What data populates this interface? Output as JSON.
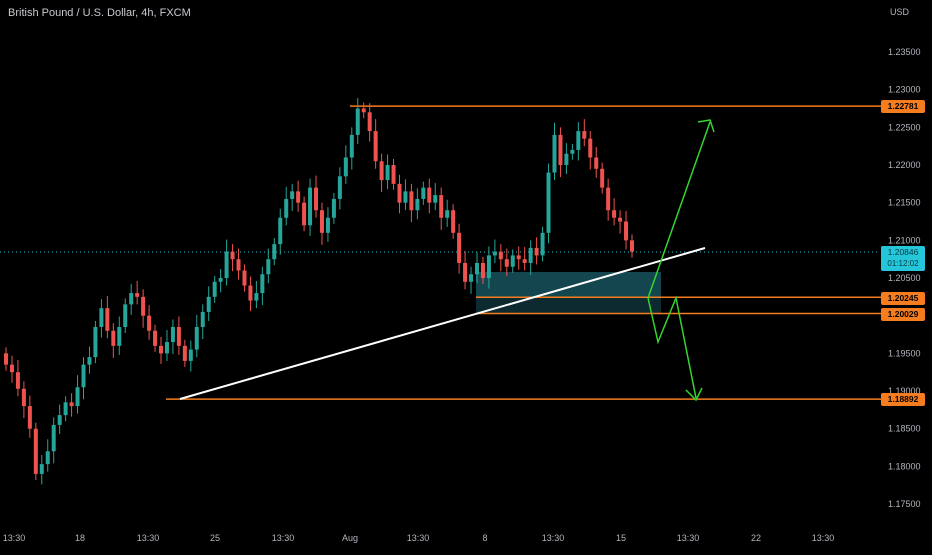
{
  "header": {
    "symbol_title": "British Pound / U.S. Dollar, 4h, FXCM"
  },
  "axis": {
    "currency": "USD"
  },
  "colors": {
    "up": "#26a69a",
    "down": "#ef5350",
    "level": "#f57c1f",
    "trend": "#ffffff",
    "arrow": "#33d62f",
    "zone": "#1b5e69",
    "current": "#26c6da"
  },
  "price_tags": {
    "resistance": "1.22781",
    "current_price": "1.20846",
    "countdown": "01:12:02",
    "zone_top": "1.20245",
    "zone_bottom": "1.20029",
    "target": "1.18892"
  },
  "chart_data": {
    "type": "candlestick",
    "title": "British Pound / U.S. Dollar, 4h, FXCM",
    "ylabel": "USD",
    "ylim": [
      1.1725,
      1.241
    ],
    "y_ticks": [
      "1.17500",
      "1.18000",
      "1.18500",
      "1.19000",
      "1.19500",
      "1.20500",
      "1.21000",
      "1.21500",
      "1.22000",
      "1.22500",
      "1.23000",
      "1.23500"
    ],
    "x_ticks": [
      "13:30",
      "18",
      "13:30",
      "25",
      "13:30",
      "Aug",
      "13:30",
      "8",
      "13:30",
      "15",
      "13:30",
      "22",
      "13:30"
    ],
    "closes": [
      1.1935,
      1.1925,
      1.1903,
      1.188,
      1.185,
      1.179,
      1.1803,
      1.182,
      1.1855,
      1.1868,
      1.1885,
      1.188,
      1.1905,
      1.1935,
      1.1945,
      1.1985,
      1.201,
      1.198,
      1.196,
      1.1985,
      1.2015,
      1.203,
      1.2025,
      1.2,
      1.198,
      1.196,
      1.195,
      1.1965,
      1.1985,
      1.196,
      1.194,
      1.1955,
      1.1985,
      1.2005,
      1.2025,
      1.2045,
      1.205,
      1.2085,
      1.2075,
      1.206,
      1.204,
      1.202,
      1.203,
      1.2055,
      1.2075,
      1.2095,
      1.213,
      1.2155,
      1.2165,
      1.215,
      1.212,
      1.217,
      1.214,
      1.211,
      1.213,
      1.2155,
      1.2185,
      1.221,
      1.224,
      1.2275,
      1.227,
      1.2245,
      1.2205,
      1.218,
      1.22,
      1.2175,
      1.215,
      1.2165,
      1.214,
      1.2155,
      1.217,
      1.215,
      1.216,
      1.213,
      1.214,
      1.211,
      1.207,
      1.2045,
      1.2055,
      1.207,
      1.205,
      1.208,
      1.2085,
      1.2075,
      1.2065,
      1.208,
      1.2075,
      1.207,
      1.209,
      1.208,
      1.211,
      1.219,
      1.224,
      1.22,
      1.2215,
      1.222,
      1.2245,
      1.2235,
      1.221,
      1.2195,
      1.217,
      1.214,
      1.213,
      1.2125,
      1.21,
      1.2085
    ]
  },
  "drawings": {
    "resistance_level": 1.22781,
    "zone_top": 1.20245,
    "zone_bottom": 1.20029,
    "target_level": 1.18892
  }
}
